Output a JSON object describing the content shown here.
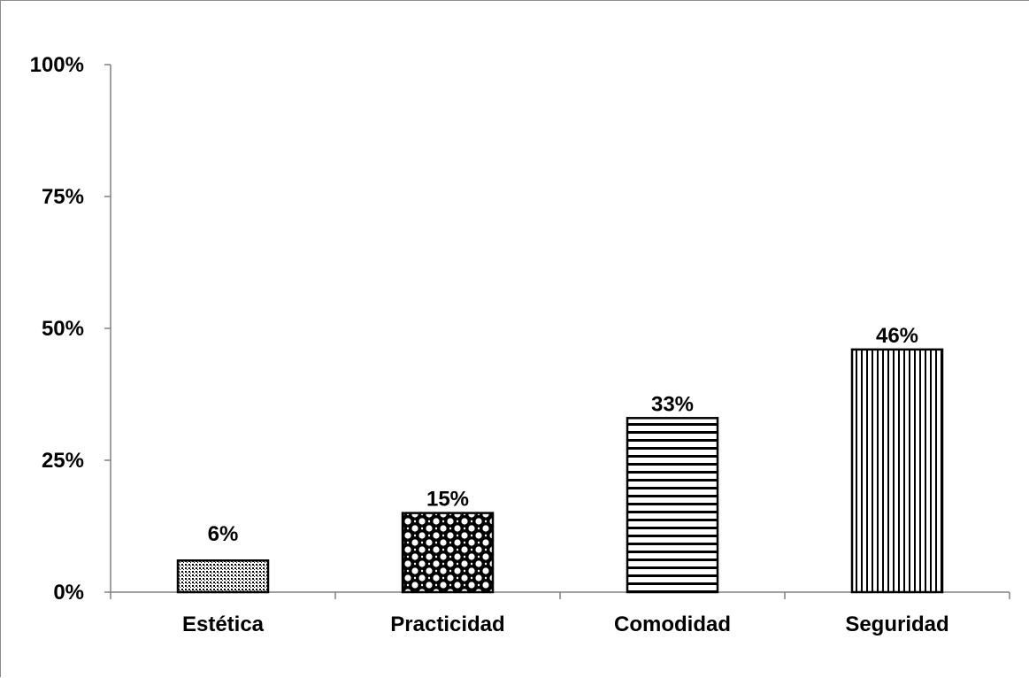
{
  "chart_data": {
    "type": "bar",
    "categories": [
      "Estética",
      "Practicidad",
      "Comodidad",
      "Seguridad"
    ],
    "values": [
      6,
      15,
      33,
      46
    ],
    "value_labels": [
      "6%",
      "15%",
      "33%",
      "46%"
    ],
    "patterns": [
      "dots",
      "checker-circles",
      "horizontal-lines",
      "vertical-lines"
    ],
    "title": "",
    "xlabel": "",
    "ylabel": "",
    "ylim": [
      0,
      100
    ],
    "yticks": [
      0,
      25,
      50,
      75,
      100
    ],
    "ytick_labels": [
      "0%",
      "25%",
      "50%",
      "75%",
      "100%"
    ],
    "grid": false,
    "legend": "none",
    "colors": {
      "bar_fill": "#ffffff",
      "bar_stroke": "#000000",
      "axis": "#808080",
      "text": "#000000"
    }
  }
}
